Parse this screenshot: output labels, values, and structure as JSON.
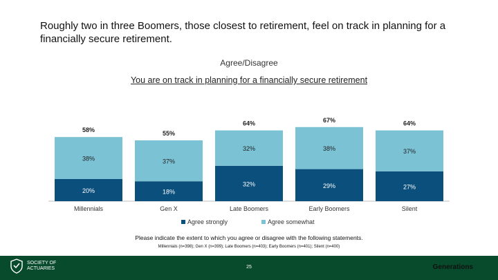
{
  "headline": "Roughly two in three Boomers, those closest to retirement, feel on track in planning for a financially secure retirement.",
  "subtitle": "Agree/Disagree",
  "colors": {
    "strongly": "#0b4f7c",
    "somewhat": "#7bc2d5"
  },
  "chart_data": {
    "type": "bar",
    "stacked": true,
    "title": "You are on track in planning for a financially secure retirement",
    "categories": [
      "Millennials",
      "Gen X",
      "Late Boomers",
      "Early Boomers",
      "Silent"
    ],
    "series": [
      {
        "name": "Agree strongly",
        "values": [
          20,
          18,
          32,
          29,
          27
        ]
      },
      {
        "name": "Agree somewhat",
        "values": [
          38,
          37,
          32,
          38,
          37
        ]
      }
    ],
    "total_labels": [
      "58%",
      "55%",
      "64%",
      "67%",
      "64%"
    ],
    "legend_position": "bottom",
    "grid": false
  },
  "footnote": "Please indicate the extent to which you agree or disagree with the following statements.",
  "footnote_sample": "Millennials (n=398); Gen X (n=399); Late Boomers (n=403); Early Boomers (n=401); Silent (n=400)",
  "footer": {
    "org_line1": "SOCIETY OF",
    "org_line2": "ACTUARIES",
    "page": "25",
    "brand": "Generations"
  }
}
